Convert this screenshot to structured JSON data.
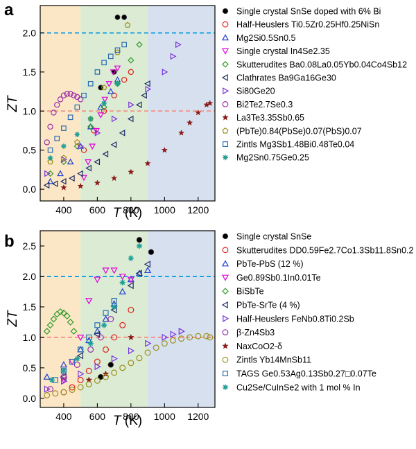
{
  "colors": {
    "band_low": "#fbe7c6",
    "band_mid": "#dcebd3",
    "band_high": "#d7e0ef",
    "ref_line_2": "#1aa3e0",
    "ref_line_1": "#f2968a"
  },
  "chart_data": [
    {
      "type": "scatter",
      "panel_label": "a",
      "xlabel": "T (K)",
      "ylabel": "ZT",
      "xlim": [
        260,
        1300
      ],
      "ylim": [
        -0.15,
        2.35
      ],
      "xticks": [
        "400",
        "600",
        "800",
        "1000",
        "1200"
      ],
      "yticks": [
        "0.0",
        "0.5",
        "1.0",
        "1.5",
        "2.0"
      ],
      "bands": [
        [
          260,
          500
        ],
        [
          500,
          900
        ],
        [
          900,
          1300
        ]
      ],
      "ref_lines": [
        2.0,
        1.0
      ],
      "series": [
        {
          "name": "Single crystal SnSe doped with 6% Bi",
          "marker": "dot",
          "color": "#000000",
          "x": [
            620,
            700,
            720,
            760
          ],
          "y": [
            1.3,
            1.5,
            2.2,
            2.2
          ]
        },
        {
          "name": "Half-Heuslers Ti0.5Zr0.25Hf0.25NiSn",
          "marker": "circle",
          "color": "#e0211d",
          "x": [
            520,
            580,
            640,
            700,
            760,
            800
          ],
          "y": [
            0.5,
            0.75,
            1.0,
            1.2,
            1.4,
            1.5
          ]
        },
        {
          "name": "Mg2Si0.5Sn0.5",
          "marker": "triangle",
          "color": "#1f3fd0",
          "x": [
            320,
            380,
            440,
            500,
            560,
            620,
            680,
            720
          ],
          "y": [
            0.1,
            0.2,
            0.35,
            0.55,
            0.8,
            1.05,
            1.25,
            1.4
          ]
        },
        {
          "name": "Single crystal In4Se2.35",
          "marker": "triangle-down",
          "color": "#e000d8",
          "x": [
            520,
            545,
            570,
            595,
            620,
            645,
            670,
            695,
            720
          ],
          "y": [
            0.15,
            0.35,
            0.55,
            0.75,
            0.95,
            1.15,
            1.35,
            1.5,
            1.55
          ]
        },
        {
          "name": "Skutterudites Ba0.08La0.05Yb0.04Co4Sb12",
          "marker": "diamond",
          "color": "#2e9a29",
          "x": [
            320,
            400,
            480,
            560,
            640,
            720,
            800,
            850
          ],
          "y": [
            0.2,
            0.35,
            0.55,
            0.8,
            1.05,
            1.35,
            1.65,
            1.85
          ]
        },
        {
          "name": "Clathrates Ba9Ga16Ge30",
          "marker": "triangle-left",
          "color": "#1c2d64",
          "x": [
            300,
            350,
            400,
            450,
            500,
            550,
            600,
            650,
            700,
            750,
            800,
            850,
            880,
            900
          ],
          "y": [
            0.05,
            0.07,
            0.1,
            0.14,
            0.2,
            0.27,
            0.35,
            0.45,
            0.57,
            0.72,
            0.9,
            1.08,
            1.2,
            1.35
          ]
        },
        {
          "name": "Si80Ge20",
          "marker": "triangle-right",
          "color": "#7733dd",
          "x": [
            300,
            400,
            500,
            600,
            700,
            800,
            900,
            1000,
            1050,
            1080
          ],
          "y": [
            0.2,
            0.38,
            0.55,
            0.72,
            0.9,
            1.08,
            1.28,
            1.5,
            1.7,
            1.85
          ]
        },
        {
          "name": "Bi2Te2.7Se0.3",
          "marker": "circle",
          "color": "#9c2fa8",
          "x": [
            300,
            320,
            340,
            360,
            380,
            400,
            420,
            440,
            460,
            480,
            500
          ],
          "y": [
            0.6,
            0.8,
            0.98,
            1.08,
            1.15,
            1.2,
            1.22,
            1.22,
            1.2,
            1.18,
            1.15
          ]
        },
        {
          "name": "La3Te3.35Sb0.65",
          "marker": "star",
          "color": "#8a1a1a",
          "x": [
            400,
            500,
            600,
            700,
            800,
            900,
            1000,
            1100,
            1150,
            1200,
            1250,
            1270
          ],
          "y": [
            0.02,
            0.04,
            0.08,
            0.14,
            0.22,
            0.33,
            0.5,
            0.72,
            0.85,
            0.98,
            1.08,
            1.1
          ]
        },
        {
          "name": "(PbTe)0.84(PbSe)0.07(PbS)0.07",
          "marker": "pentagon",
          "color": "#9b8e1b",
          "x": [
            320,
            400,
            480,
            560,
            640,
            720,
            780
          ],
          "y": [
            0.35,
            0.4,
            0.6,
            0.9,
            1.3,
            1.75,
            2.1
          ]
        },
        {
          "name": "Zintls Mg3Sb1.48Bi0.48Te0.04",
          "marker": "square",
          "color": "#2b6db3",
          "x": [
            320,
            360,
            400,
            440,
            480,
            520,
            560,
            600,
            640,
            680,
            720,
            760
          ],
          "y": [
            0.5,
            0.65,
            0.78,
            0.92,
            1.05,
            1.2,
            1.35,
            1.5,
            1.62,
            1.7,
            1.78,
            1.85
          ]
        },
        {
          "name": "Mg2Sn0.75Ge0.25",
          "marker": "asterisk",
          "color": "#1a9e95",
          "x": [
            320,
            400,
            480,
            560,
            640,
            720
          ],
          "y": [
            0.4,
            0.55,
            0.7,
            0.9,
            1.1,
            1.35
          ]
        }
      ]
    },
    {
      "type": "scatter",
      "panel_label": "b",
      "xlabel": "T (K)",
      "ylabel": "ZT",
      "xlim": [
        260,
        1300
      ],
      "ylim": [
        -0.15,
        2.75
      ],
      "xticks": [
        "400",
        "600",
        "800",
        "1000",
        "1200"
      ],
      "yticks": [
        "0.0",
        "0.5",
        "1.0",
        "1.5",
        "2.0",
        "2.5"
      ],
      "bands": [
        [
          260,
          500
        ],
        [
          500,
          900
        ],
        [
          900,
          1300
        ]
      ],
      "ref_lines": [
        2.0,
        1.0
      ],
      "series": [
        {
          "name": "Single crystal SnSe",
          "marker": "dot",
          "color": "#000000",
          "x": [
            620,
            680,
            850,
            920
          ],
          "y": [
            0.35,
            0.55,
            2.6,
            2.4
          ]
        },
        {
          "name": "Skutterudites DD0.59Fe2.7Co1.3Sb11.8Sn0.2",
          "marker": "circle",
          "color": "#e0211d",
          "x": [
            400,
            450,
            500,
            550,
            600,
            650,
            700,
            750,
            800
          ],
          "y": [
            0.1,
            0.18,
            0.3,
            0.45,
            0.6,
            0.8,
            1.0,
            1.2,
            1.45
          ]
        },
        {
          "name": "PbTe-PbS (12 %)",
          "marker": "triangle",
          "color": "#1f3fd0",
          "x": [
            300,
            400,
            500,
            550,
            600,
            650,
            700,
            750,
            800,
            850,
            900
          ],
          "y": [
            0.35,
            0.55,
            0.8,
            0.95,
            1.1,
            1.3,
            1.55,
            1.75,
            1.95,
            2.05,
            2.1
          ]
        },
        {
          "name": "Ge0.89Sb0.1In0.01Te",
          "marker": "triangle-down",
          "color": "#e000d8",
          "x": [
            400,
            450,
            500,
            550,
            600,
            650,
            700,
            750,
            800
          ],
          "y": [
            0.3,
            0.6,
            1.0,
            1.6,
            1.95,
            2.1,
            2.1,
            2.0,
            1.95
          ]
        },
        {
          "name": "BiSbTe",
          "marker": "diamond",
          "color": "#2e9a29",
          "x": [
            300,
            320,
            340,
            360,
            380,
            400,
            420,
            440,
            460
          ],
          "y": [
            1.1,
            1.2,
            1.3,
            1.38,
            1.42,
            1.4,
            1.35,
            1.25,
            1.1
          ]
        },
        {
          "name": "PbTe-SrTe (4 %)",
          "marker": "triangle-left",
          "color": "#1c2d64",
          "x": [
            400,
            500,
            600,
            700,
            800,
            850,
            900
          ],
          "y": [
            0.35,
            0.7,
            1.05,
            1.45,
            1.85,
            2.05,
            2.2
          ]
        },
        {
          "name": "Half-Heuslers FeNb0.8Ti0.2Sb",
          "marker": "triangle-right",
          "color": "#7733dd",
          "x": [
            300,
            400,
            500,
            600,
            700,
            800,
            900,
            1000,
            1050,
            1100
          ],
          "y": [
            0.15,
            0.28,
            0.4,
            0.52,
            0.65,
            0.78,
            0.9,
            1.0,
            1.05,
            1.1
          ]
        },
        {
          "name": "β-Zn4Sb3",
          "marker": "circle",
          "color": "#9c2fa8",
          "x": [
            320,
            400,
            480,
            560,
            620,
            680
          ],
          "y": [
            0.15,
            0.35,
            0.55,
            0.8,
            1.0,
            1.3
          ]
        },
        {
          "name": "NaxCoO2-δ",
          "marker": "star",
          "color": "#8a1a1a",
          "x": [
            550,
            650,
            800
          ],
          "y": [
            0.3,
            0.4,
            1.0
          ]
        },
        {
          "name": "Zintls Yb14MnSb11",
          "marker": "circle-open",
          "color": "#9b8e1b",
          "x": [
            300,
            350,
            400,
            450,
            500,
            550,
            600,
            650,
            700,
            750,
            800,
            850,
            900,
            950,
            1000,
            1050,
            1100,
            1150,
            1200,
            1250,
            1270
          ],
          "y": [
            0.05,
            0.08,
            0.1,
            0.14,
            0.18,
            0.23,
            0.29,
            0.35,
            0.42,
            0.5,
            0.58,
            0.66,
            0.75,
            0.83,
            0.9,
            0.95,
            0.98,
            1.0,
            1.02,
            1.02,
            1.0
          ]
        },
        {
          "name": "TAGS Ge0.53Ag0.13Sb0.27□0.07Te",
          "marker": "square",
          "color": "#2b6db3",
          "x": [
            350,
            400,
            450,
            500,
            550,
            600,
            650,
            700
          ],
          "y": [
            0.3,
            0.45,
            0.6,
            0.8,
            1.0,
            1.2,
            1.4,
            1.6
          ]
        },
        {
          "name": "Cu2Se/CuInSe2 with 1 mol % In",
          "marker": "asterisk",
          "color": "#1a9e95",
          "x": [
            330,
            400,
            480,
            560,
            640,
            700,
            750,
            800,
            850
          ],
          "y": [
            0.3,
            0.45,
            0.65,
            0.9,
            1.2,
            1.5,
            1.9,
            2.3,
            2.5
          ]
        }
      ]
    }
  ]
}
